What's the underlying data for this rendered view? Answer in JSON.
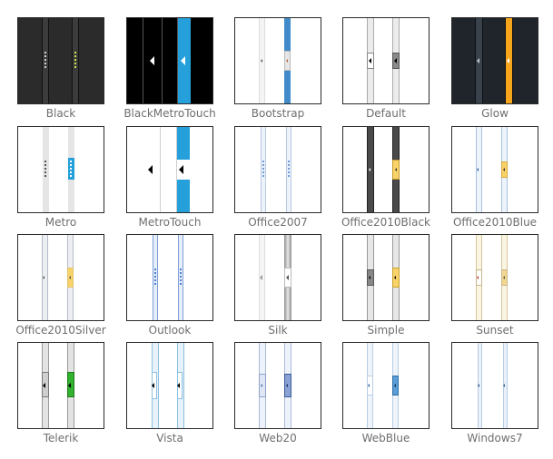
{
  "skins": [
    {
      "label": "Black",
      "row": 0,
      "col": 0,
      "theme": "black",
      "bg": "#2b2b2b",
      "accent": "#c8e04a"
    },
    {
      "label": "BlackMetroTouch",
      "row": 0,
      "col": 1,
      "theme": "blackmetrotouch",
      "bg": "#000000",
      "accent": "#25a0da"
    },
    {
      "label": "Bootstrap",
      "row": 0,
      "col": 2,
      "theme": "bootstrap",
      "bg": "#ffffff",
      "accent": "#428bca"
    },
    {
      "label": "Default",
      "row": 0,
      "col": 3,
      "theme": "default",
      "bg": "#ffffff",
      "accent": "#8a8a8a"
    },
    {
      "label": "Glow",
      "row": 0,
      "col": 4,
      "theme": "glow",
      "bg": "#1f252b",
      "accent": "#f7a51c"
    },
    {
      "label": "Metro",
      "row": 1,
      "col": 0,
      "theme": "metro",
      "bg": "#ffffff",
      "accent": "#25a0da"
    },
    {
      "label": "MetroTouch",
      "row": 1,
      "col": 1,
      "theme": "metrotouch",
      "bg": "#ffffff",
      "accent": "#25a0da"
    },
    {
      "label": "Office2007",
      "row": 1,
      "col": 2,
      "theme": "office2007",
      "bg": "#ffffff",
      "accent": "#6f9ad6"
    },
    {
      "label": "Office2010Black",
      "row": 1,
      "col": 3,
      "theme": "office2010black",
      "bg": "#ffffff",
      "accent": "#f8d36a"
    },
    {
      "label": "Office2010Blue",
      "row": 1,
      "col": 4,
      "theme": "office2010blue",
      "bg": "#ffffff",
      "accent": "#f8d36a"
    },
    {
      "label": "Office2010Silver",
      "row": 2,
      "col": 0,
      "theme": "office2010silver",
      "bg": "#ffffff",
      "accent": "#f8d36a"
    },
    {
      "label": "Outlook",
      "row": 2,
      "col": 1,
      "theme": "outlook",
      "bg": "#ffffff",
      "accent": "#4f7fd0"
    },
    {
      "label": "Silk",
      "row": 2,
      "col": 2,
      "theme": "silk",
      "bg": "#ffffff",
      "accent": "#9a9a9a"
    },
    {
      "label": "Simple",
      "row": 2,
      "col": 3,
      "theme": "simple",
      "bg": "#ffffff",
      "accent": "#f8d36a"
    },
    {
      "label": "Sunset",
      "row": 2,
      "col": 4,
      "theme": "sunset",
      "bg": "#ffffff",
      "accent": "#f2d88e"
    },
    {
      "label": "Telerik",
      "row": 3,
      "col": 0,
      "theme": "telerik",
      "bg": "#ffffff",
      "accent": "#33b230"
    },
    {
      "label": "Vista",
      "row": 3,
      "col": 1,
      "theme": "vista",
      "bg": "#ffffff",
      "accent": "#4ea7d8"
    },
    {
      "label": "Web20",
      "row": 3,
      "col": 2,
      "theme": "web20",
      "bg": "#ffffff",
      "accent": "#4a6fb3"
    },
    {
      "label": "WebBlue",
      "row": 3,
      "col": 3,
      "theme": "webblue",
      "bg": "#ffffff",
      "accent": "#5b9dd6"
    },
    {
      "label": "Windows7",
      "row": 3,
      "col": 4,
      "theme": "windows7",
      "bg": "#ffffff",
      "accent": "#7fa5d6"
    }
  ]
}
